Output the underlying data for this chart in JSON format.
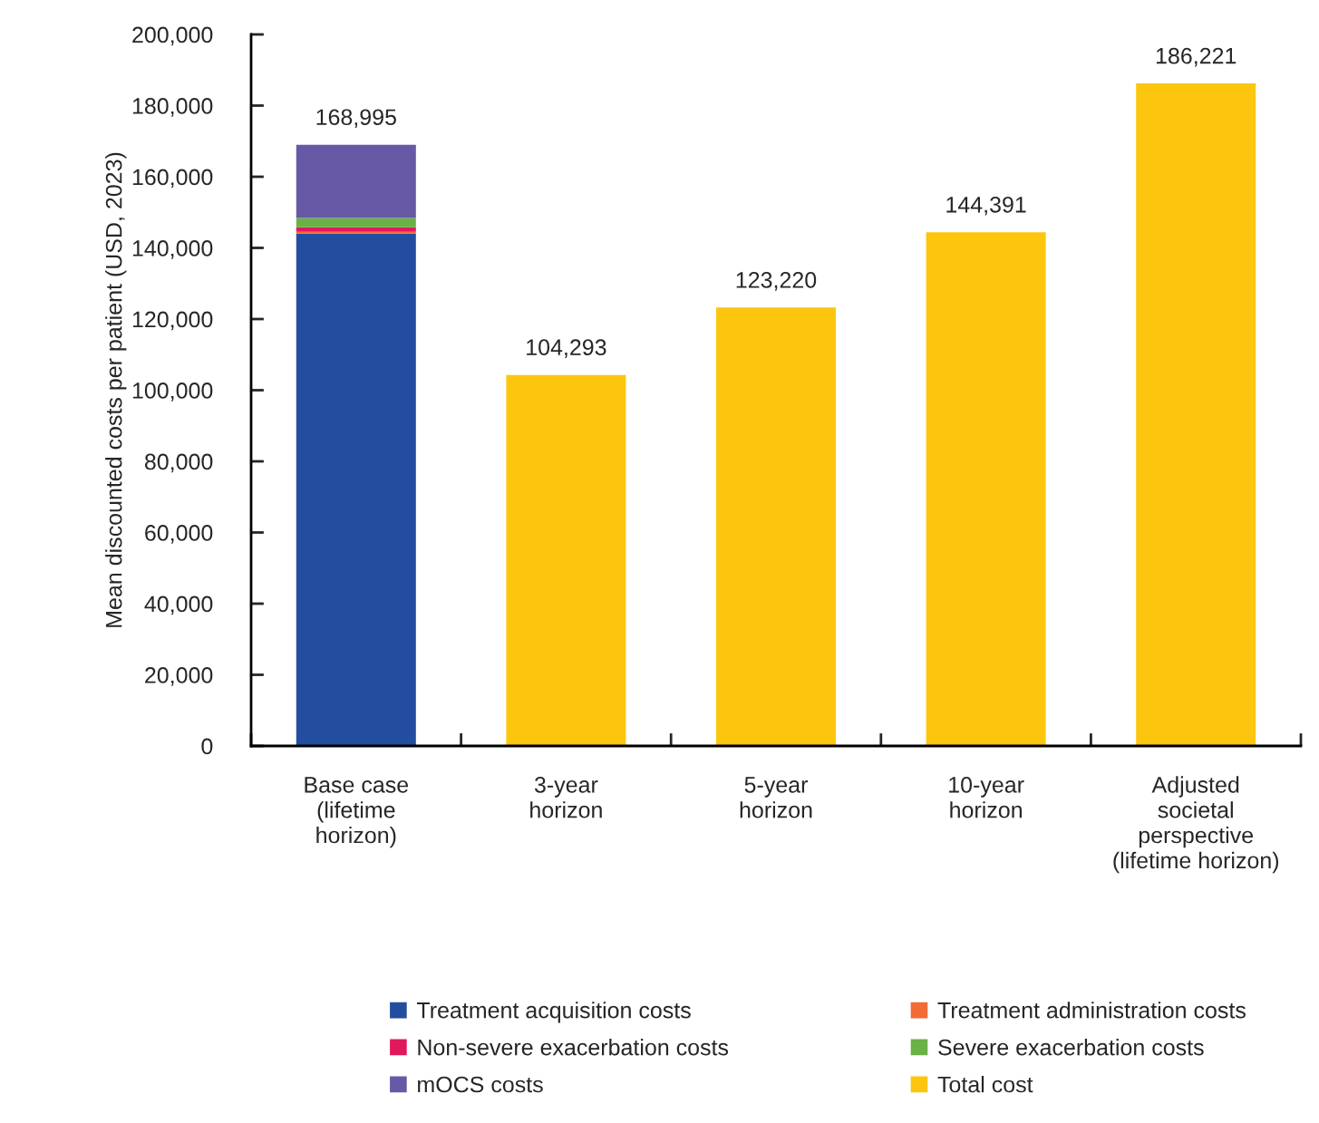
{
  "chart_data": {
    "type": "bar",
    "stacked": true,
    "ylabel": "Mean discounted costs per patient (USD, 2023)",
    "categories": [
      "Base case\n(lifetime\nhorizon)",
      "3-year\nhorizon",
      "5-year\nhorizon",
      "10-year\nhorizon",
      "Adjusted\nsocietal\nperspective\n(lifetime horizon)"
    ],
    "series": [
      {
        "name": "Treatment acquisition costs",
        "color": "#234ea0",
        "values": [
          144000,
          null,
          null,
          null,
          null
        ]
      },
      {
        "name": "Treatment administration costs",
        "color": "#f26a35",
        "values": [
          500,
          null,
          null,
          null,
          null
        ]
      },
      {
        "name": "Non-severe exacerbation costs",
        "color": "#e0195b",
        "values": [
          1300,
          null,
          null,
          null,
          null
        ]
      },
      {
        "name": "Severe exacerbation costs",
        "color": "#6ab245",
        "values": [
          2600,
          null,
          null,
          null,
          null
        ]
      },
      {
        "name": "mOCS costs",
        "color": "#6859a6",
        "values": [
          20595,
          null,
          null,
          null,
          null
        ]
      },
      {
        "name": "Total cost",
        "color": "#fcc60f",
        "values": [
          null,
          104293,
          123220,
          144391,
          186221
        ]
      }
    ],
    "totals": [
      "168,995",
      "104,293",
      "123,220",
      "144,391",
      "186,221"
    ],
    "ylim": [
      0,
      200000
    ],
    "yticks": [
      {
        "value": 0,
        "label": "0"
      },
      {
        "value": 20000,
        "label": "20,000"
      },
      {
        "value": 40000,
        "label": "40,000"
      },
      {
        "value": 60000,
        "label": "60,000"
      },
      {
        "value": 80000,
        "label": "80,000"
      },
      {
        "value": 100000,
        "label": "100,000"
      },
      {
        "value": 120000,
        "label": "120,000"
      },
      {
        "value": 140000,
        "label": "140,000"
      },
      {
        "value": 160000,
        "label": "160,000"
      },
      {
        "value": 180000,
        "label": "180,000"
      },
      {
        "value": 200000,
        "label": "200,000"
      }
    ],
    "grid": false,
    "legend": "bottom"
  }
}
